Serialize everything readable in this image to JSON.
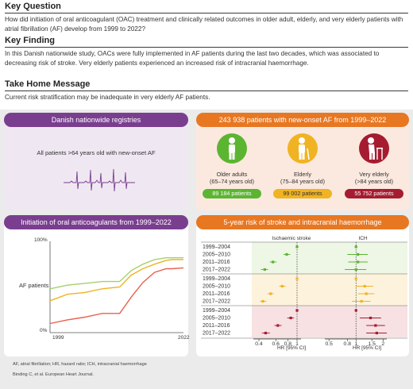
{
  "key_question": {
    "heading": "Key Question",
    "text": "How did initiation of oral anticoagulant (OAC) treatment and clinically related outcomes in older adult, elderly, and very elderly patients with atrial fibrillation (AF) develop from 1999 to 2022?"
  },
  "key_finding": {
    "heading": "Key Finding",
    "text": "In this Danish nationwide study, OACs were fully implemented in AF patients during the last two decades, which was associated to decreasing risk of stroke. Very elderly patients experienced an increased risk of intracranial haemorrhage."
  },
  "take_home": {
    "heading": "Take Home Message",
    "text": "Current risk stratification may be inadequate in very elderly AF patients."
  },
  "registries": {
    "banner": "Danish nationwide registries",
    "text": "All patients >64 years old with new-onset AF"
  },
  "patients": {
    "banner": "243 938 patients with new-onset AF from 1999–2022",
    "groups": [
      {
        "label1": "Older adults",
        "label2": "(65–74 years old)",
        "count": "89 184 patients",
        "color": "#5cb531",
        "icon": "older-adult-icon"
      },
      {
        "label1": "Elderly",
        "label2": "(75–84 years old)",
        "count": "99 002 patients",
        "color": "#f0b323",
        "icon": "elderly-cane-icon"
      },
      {
        "label1": "Very elderly",
        "label2": "(>84 years old)",
        "count": "55 752 patients",
        "color": "#a51c30",
        "icon": "very-elderly-walker-icon"
      }
    ]
  },
  "initiation": {
    "banner": "Initiation of oral anticoagulants from 1999–2022",
    "ylabel": "AF patients",
    "y_top": "100%",
    "y_bottom": "0%",
    "x_start": "1999",
    "x_end": "2022"
  },
  "forest": {
    "banner": "5-year risk of stroke and intracranial haemorrhage",
    "col1": "Ischaemic stroke",
    "col2": "ICH",
    "periods": [
      "1999–2004",
      "2005–2010",
      "2011–2016",
      "2017–2022"
    ],
    "axis1_ticks": [
      "0.4",
      "0.6",
      "0.8",
      "1"
    ],
    "axis2_ticks": [
      "0.5",
      "0.8",
      "1",
      "1.5",
      "2"
    ],
    "xlabel1": "HR [95% CI]",
    "xlabel2": "HR [95% CI]"
  },
  "footer": {
    "abbrev": "AF, atrial fibrillation; HR, hazard ratio; ICH, intracranial haemorrhage",
    "citation": "Binding C, et al. European Heart Journal."
  },
  "colors": {
    "purple": "#7a3e8f",
    "orange": "#e87722",
    "green": "#5cb531",
    "yellow": "#f0b323",
    "red": "#a51c30",
    "coral": "#e8604c"
  },
  "chart_data": [
    {
      "type": "line",
      "x": [
        1999,
        2002,
        2005,
        2008,
        2011,
        2013,
        2015,
        2017,
        2019,
        2020,
        2022
      ],
      "series": [
        {
          "values": [
            0.48,
            0.52,
            0.54,
            0.56,
            0.56,
            0.68,
            0.75,
            0.8,
            0.82,
            0.82,
            0.82
          ],
          "color": "#a6d06a"
        },
        {
          "values": [
            0.35,
            0.42,
            0.44,
            0.48,
            0.5,
            0.63,
            0.7,
            0.75,
            0.79,
            0.8,
            0.8
          ],
          "color": "#f0b323"
        },
        {
          "values": [
            0.1,
            0.14,
            0.17,
            0.21,
            0.21,
            0.39,
            0.55,
            0.66,
            0.7,
            0.7,
            0.71
          ],
          "color": "#e8604c"
        }
      ],
      "xlabel": "",
      "ylabel": "AF patients",
      "ylim": [
        0,
        1
      ]
    },
    {
      "type": "scatter",
      "title": "Ischaemic stroke",
      "xlabel": "HR [95% CI]",
      "xlim": [
        0.35,
        1.1
      ],
      "log_x": true,
      "groups": [
        {
          "color": "#5cb531",
          "points": [
            {
              "hr": 1.0,
              "lo": 1.0,
              "hi": 1.0
            },
            {
              "hr": 0.78,
              "lo": 0.72,
              "hi": 0.85
            },
            {
              "hr": 0.56,
              "lo": 0.52,
              "hi": 0.61
            },
            {
              "hr": 0.46,
              "lo": 0.42,
              "hi": 0.5
            }
          ]
        },
        {
          "color": "#f0b323",
          "points": [
            {
              "hr": 1.0,
              "lo": 1.0,
              "hi": 1.0
            },
            {
              "hr": 0.7,
              "lo": 0.65,
              "hi": 0.76
            },
            {
              "hr": 0.53,
              "lo": 0.49,
              "hi": 0.57
            },
            {
              "hr": 0.44,
              "lo": 0.41,
              "hi": 0.48
            }
          ]
        },
        {
          "color": "#a51c30",
          "points": [
            {
              "hr": 1.0,
              "lo": 1.0,
              "hi": 1.0
            },
            {
              "hr": 0.86,
              "lo": 0.79,
              "hi": 0.93
            },
            {
              "hr": 0.63,
              "lo": 0.58,
              "hi": 0.69
            },
            {
              "hr": 0.47,
              "lo": 0.43,
              "hi": 0.52
            }
          ]
        }
      ]
    },
    {
      "type": "scatter",
      "title": "ICH",
      "xlabel": "HR [95% CI]",
      "xlim": [
        0.45,
        2.2
      ],
      "log_x": true,
      "groups": [
        {
          "color": "#5cb531",
          "points": [
            {
              "hr": 1.0,
              "lo": 1.0,
              "hi": 1.0
            },
            {
              "hr": 1.05,
              "lo": 0.8,
              "hi": 1.35
            },
            {
              "hr": 1.05,
              "lo": 0.82,
              "hi": 1.35
            },
            {
              "hr": 1.0,
              "lo": 0.75,
              "hi": 1.3
            }
          ]
        },
        {
          "color": "#f0b323",
          "points": [
            {
              "hr": 1.0,
              "lo": 1.0,
              "hi": 1.0
            },
            {
              "hr": 1.25,
              "lo": 1.0,
              "hi": 1.55
            },
            {
              "hr": 1.3,
              "lo": 1.05,
              "hi": 1.6
            },
            {
              "hr": 1.15,
              "lo": 0.9,
              "hi": 1.45
            }
          ]
        },
        {
          "color": "#a51c30",
          "points": [
            {
              "hr": 1.0,
              "lo": 1.0,
              "hi": 1.0
            },
            {
              "hr": 1.45,
              "lo": 1.1,
              "hi": 1.9
            },
            {
              "hr": 1.65,
              "lo": 1.3,
              "hi": 2.1
            },
            {
              "hr": 1.7,
              "lo": 1.3,
              "hi": 2.2
            }
          ]
        }
      ]
    }
  ]
}
